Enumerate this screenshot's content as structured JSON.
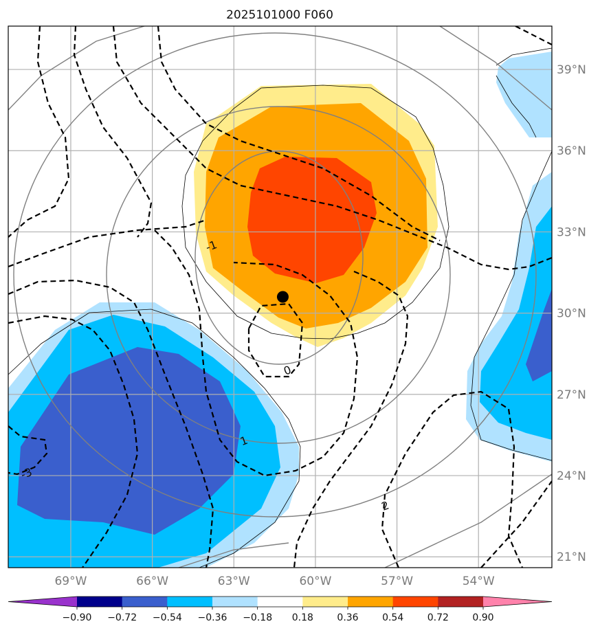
{
  "title": "2025101000 F060",
  "map": {
    "lon_range": [
      -71.3,
      -51.3
    ],
    "lat_range": [
      20.6,
      40.6
    ],
    "lon_ticks": [
      {
        "value": -69,
        "label": "69°W"
      },
      {
        "value": -66,
        "label": "66°W"
      },
      {
        "value": -63,
        "label": "63°W"
      },
      {
        "value": -60,
        "label": "60°W"
      },
      {
        "value": -57,
        "label": "57°W"
      },
      {
        "value": -54,
        "label": "54°W"
      }
    ],
    "lat_ticks": [
      {
        "value": 21,
        "label": "21°N"
      },
      {
        "value": 24,
        "label": "24°N"
      },
      {
        "value": 27,
        "label": "27°N"
      },
      {
        "value": 30,
        "label": "30°N"
      },
      {
        "value": 33,
        "label": "33°N"
      },
      {
        "value": 36,
        "label": "36°N"
      },
      {
        "value": 39,
        "label": "39°N"
      }
    ],
    "grid": true,
    "marker": {
      "lon": -61.2,
      "lat": 30.6
    }
  },
  "contour_labels": [
    {
      "text": "-1",
      "lon": -63.8,
      "lat": 32.4
    },
    {
      "text": "0",
      "lon": -61.0,
      "lat": 27.8
    },
    {
      "text": "1",
      "lon": -62.6,
      "lat": 25.2
    },
    {
      "text": "-3",
      "lon": -70.6,
      "lat": 24.0
    },
    {
      "text": "2",
      "lon": -57.4,
      "lat": 22.8
    }
  ],
  "colorbar": {
    "ticks": [
      "−0.90",
      "−0.72",
      "−0.54",
      "−0.36",
      "−0.18",
      "0.18",
      "0.36",
      "0.54",
      "0.72",
      "0.90"
    ],
    "colors": [
      "#9932cc",
      "#00008b",
      "#3a5fcd",
      "#00bfff",
      "#b0e2ff",
      "#ffffff",
      "#ffec8b",
      "#ffa500",
      "#ff4500",
      "#b22222",
      "#ff82ab"
    ],
    "extend": "both"
  }
}
